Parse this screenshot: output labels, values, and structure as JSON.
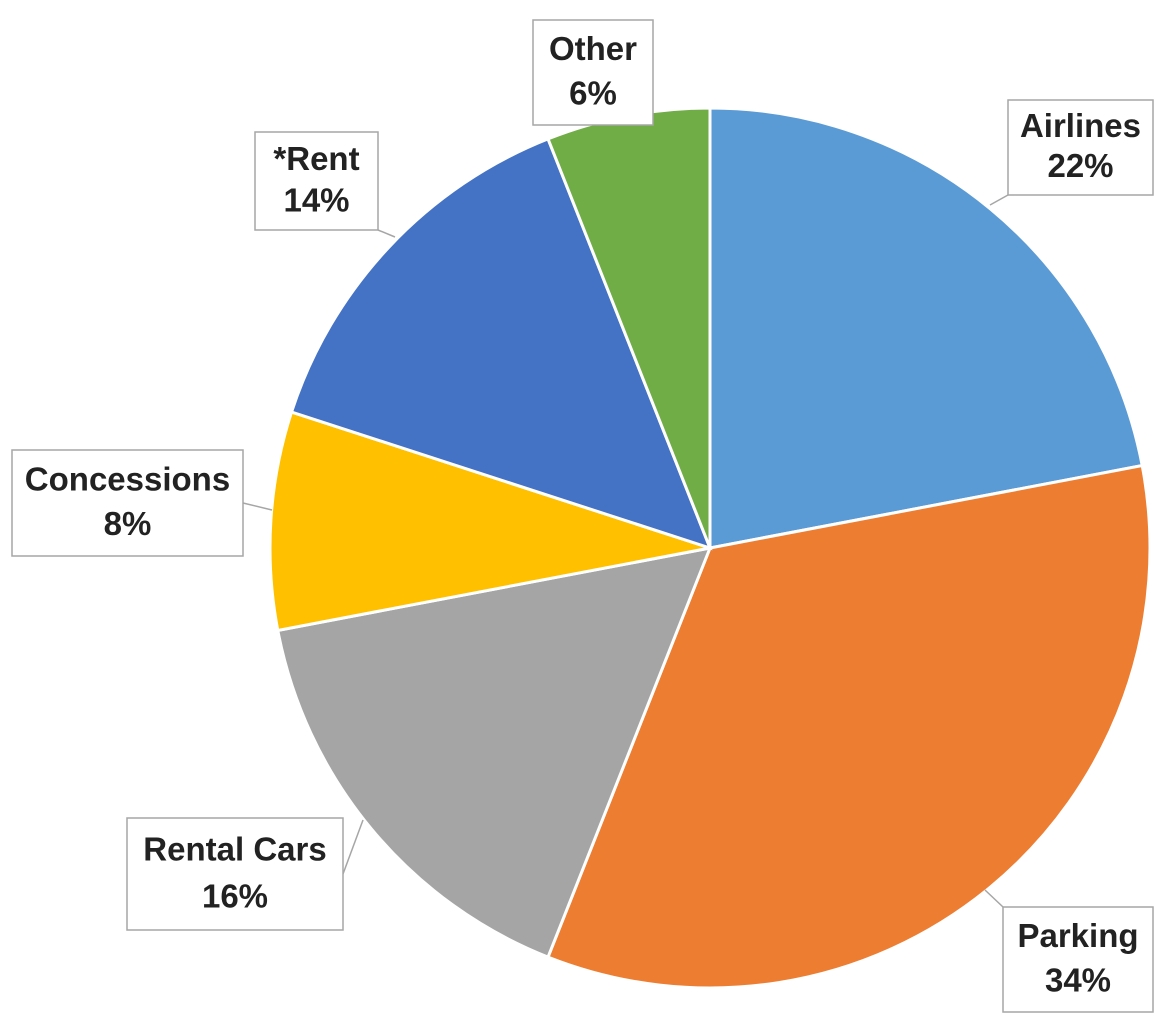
{
  "chart_data": {
    "type": "pie",
    "categories": [
      "Airlines",
      "Parking",
      "Rental Cars",
      "Concessions",
      "*Rent",
      "Other"
    ],
    "values": [
      22,
      34,
      16,
      8,
      14,
      6
    ],
    "value_labels": [
      "22%",
      "34%",
      "16%",
      "8%",
      "14%",
      "6%"
    ],
    "colors": [
      "#5b9bd5",
      "#ed7d31",
      "#a5a5a5",
      "#ffc000",
      "#4472c4",
      "#70ad47"
    ]
  }
}
